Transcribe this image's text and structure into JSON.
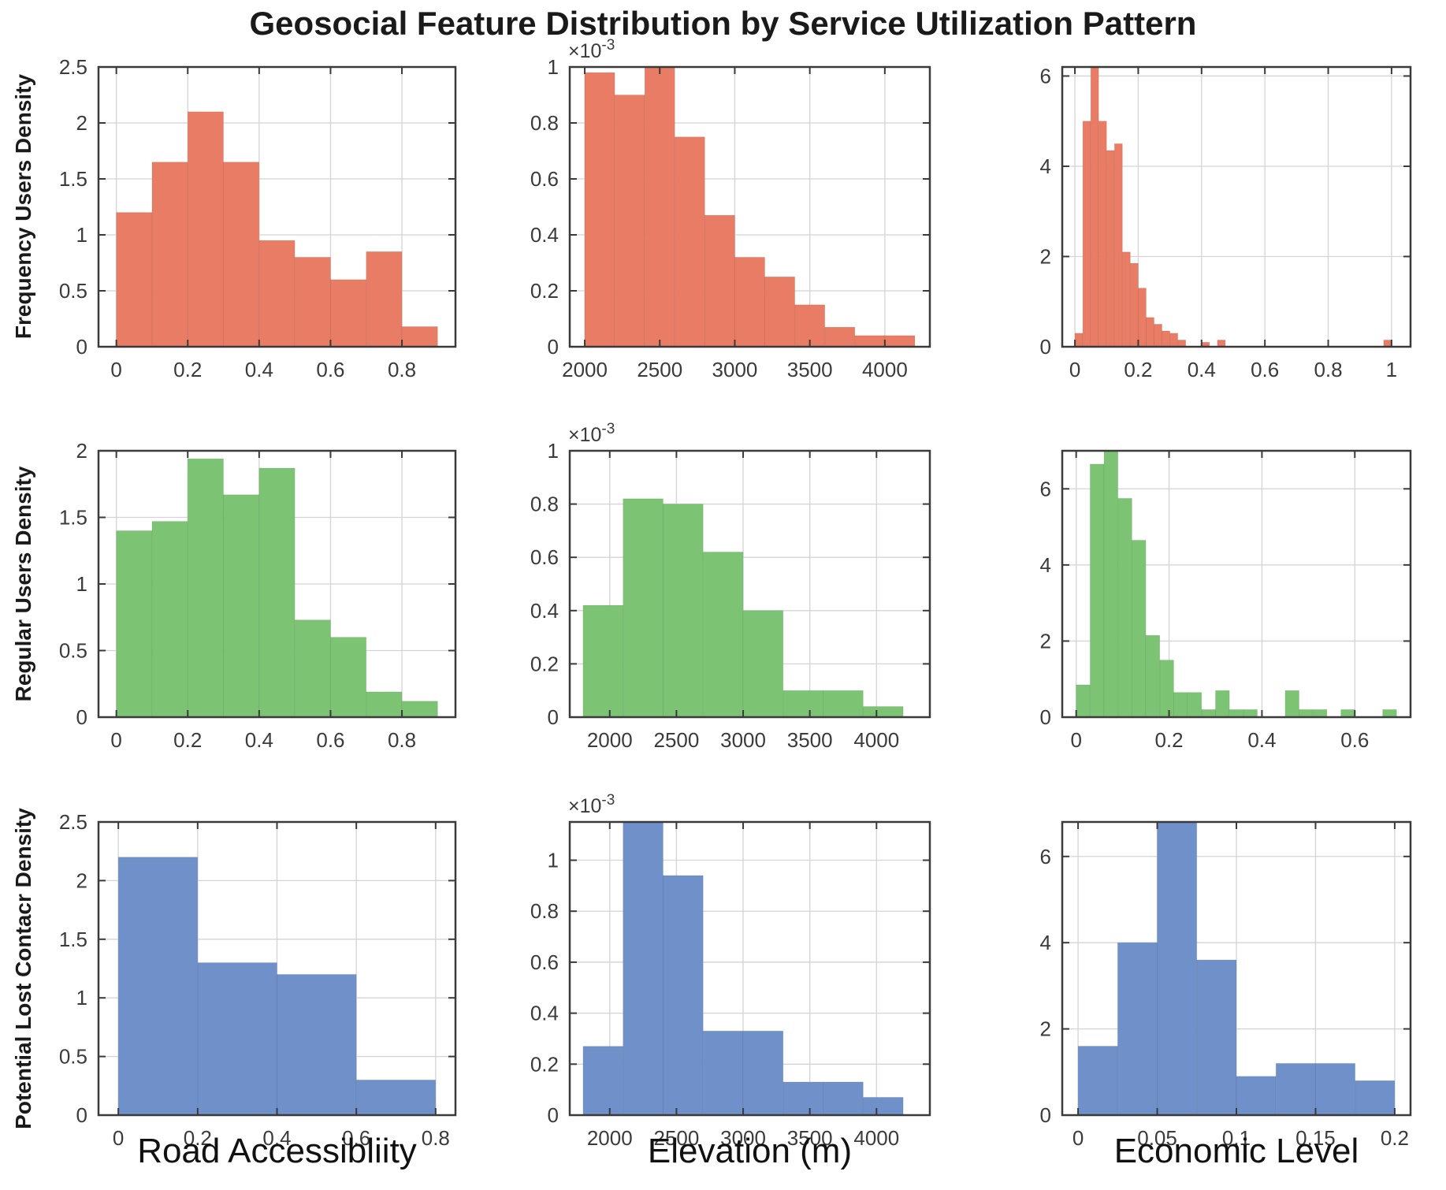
{
  "title": "Geosocial Feature Distribution by Service Utilization Pattern",
  "row_labels": [
    "Frequency Users Density",
    "Regular Users Density",
    "Potential Lost Contacr Density"
  ],
  "col_labels": [
    "Road Accessibliity",
    "Elevation (m)",
    "Economic Level"
  ],
  "colors": {
    "frequency_users": "#e87c64",
    "regular_users": "#7cc474",
    "potential_lost": "#6f90c8",
    "grid": "#d4d4d4",
    "axis": "#3a3a3a",
    "background": "#ffffff"
  },
  "chart_data": [
    {
      "type": "histogram",
      "series_name": "Frequency Users Density",
      "feature": "Road Accessibliity",
      "color": "#e87c64",
      "grid": true,
      "xlim": [
        -0.05,
        0.95
      ],
      "ylim": [
        0,
        2.5
      ],
      "xticks": [
        0,
        0.2,
        0.4,
        0.6,
        0.8
      ],
      "xtick_labels": [
        "0",
        "0.2",
        "0.4",
        "0.6",
        "0.8"
      ],
      "yticks": [
        0,
        0.5,
        1,
        1.5,
        2,
        2.5
      ],
      "ytick_labels": [
        "0",
        "0.5",
        "1",
        "1.5",
        "2",
        "2.5"
      ],
      "bin_start": 0,
      "bin_width": 0.1,
      "values": [
        1.2,
        1.65,
        2.1,
        1.65,
        0.95,
        0.8,
        0.6,
        0.85,
        0.18
      ]
    },
    {
      "type": "histogram",
      "series_name": "Frequency Users Density",
      "feature": "Elevation (m)",
      "color": "#e87c64",
      "grid": true,
      "xlim": [
        1900,
        4300
      ],
      "ylim": [
        0,
        1
      ],
      "xticks": [
        2000,
        2500,
        3000,
        3500,
        4000
      ],
      "xtick_labels": [
        "2000",
        "2500",
        "3000",
        "3500",
        "4000"
      ],
      "yticks": [
        0,
        0.2,
        0.4,
        0.6,
        0.8,
        1
      ],
      "ytick_labels": [
        "0",
        "0.2",
        "0.4",
        "0.6",
        "0.8",
        "1"
      ],
      "y_exponent": {
        "base": "×10",
        "exp": "-3"
      },
      "y_unit": "1e-3",
      "bin_start": 2000,
      "bin_width": 200,
      "values": [
        0.98,
        0.9,
        1.0,
        0.75,
        0.47,
        0.32,
        0.25,
        0.15,
        0.07,
        0.04,
        0.04
      ]
    },
    {
      "type": "histogram",
      "series_name": "Frequency Users Density",
      "feature": "Economic Level",
      "color": "#e87c64",
      "grid": true,
      "xlim": [
        -0.04,
        1.06
      ],
      "ylim": [
        0,
        6.2
      ],
      "xticks": [
        0,
        0.2,
        0.4,
        0.6,
        0.8,
        1
      ],
      "xtick_labels": [
        "0",
        "0.2",
        "0.4",
        "0.6",
        "0.8",
        "1"
      ],
      "yticks": [
        0,
        2,
        4,
        6
      ],
      "ytick_labels": [
        "0",
        "2",
        "4",
        "6"
      ],
      "bin_start": 0,
      "bin_width": 0.025,
      "values": [
        0.3,
        5,
        6.2,
        5,
        4.35,
        4.5,
        2.1,
        1.85,
        1.3,
        0.65,
        0.5,
        0.35,
        0.3,
        0.15,
        0,
        0,
        0.1,
        0,
        0.15,
        0,
        0,
        0,
        0,
        0,
        0,
        0,
        0,
        0,
        0,
        0,
        0,
        0,
        0,
        0,
        0,
        0,
        0,
        0,
        0,
        0.15
      ]
    },
    {
      "type": "histogram",
      "series_name": "Regular Users Density",
      "feature": "Road Accessibliity",
      "color": "#7cc474",
      "grid": true,
      "xlim": [
        -0.05,
        0.95
      ],
      "ylim": [
        0,
        2
      ],
      "xticks": [
        0,
        0.2,
        0.4,
        0.6,
        0.8
      ],
      "xtick_labels": [
        "0",
        "0.2",
        "0.4",
        "0.6",
        "0.8"
      ],
      "yticks": [
        0,
        0.5,
        1,
        1.5,
        2
      ],
      "ytick_labels": [
        "0",
        "0.5",
        "1",
        "1.5",
        "2"
      ],
      "bin_start": 0,
      "bin_width": 0.1,
      "values": [
        1.4,
        1.47,
        1.94,
        1.67,
        1.87,
        0.73,
        0.6,
        0.19,
        0.12
      ]
    },
    {
      "type": "histogram",
      "series_name": "Regular Users Density",
      "feature": "Elevation (m)",
      "color": "#7cc474",
      "grid": true,
      "xlim": [
        1700,
        4400
      ],
      "ylim": [
        0,
        1
      ],
      "xticks": [
        2000,
        2500,
        3000,
        3500,
        4000
      ],
      "xtick_labels": [
        "2000",
        "2500",
        "3000",
        "3500",
        "4000"
      ],
      "yticks": [
        0,
        0.2,
        0.4,
        0.6,
        0.8,
        1
      ],
      "ytick_labels": [
        "0",
        "0.2",
        "0.4",
        "0.6",
        "0.8",
        "1"
      ],
      "y_exponent": {
        "base": "×10",
        "exp": "-3"
      },
      "y_unit": "1e-3",
      "bin_start": 1800,
      "bin_width": 300,
      "values": [
        0.42,
        0.82,
        0.8,
        0.62,
        0.4,
        0.1,
        0.1,
        0.04
      ]
    },
    {
      "type": "histogram",
      "series_name": "Regular Users Density",
      "feature": "Economic Level",
      "color": "#7cc474",
      "grid": true,
      "xlim": [
        -0.03,
        0.72
      ],
      "ylim": [
        0,
        7
      ],
      "xticks": [
        0,
        0.2,
        0.4,
        0.6
      ],
      "xtick_labels": [
        "0",
        "0.2",
        "0.4",
        "0.6"
      ],
      "yticks": [
        0,
        2,
        4,
        6
      ],
      "ytick_labels": [
        "0",
        "2",
        "4",
        "6"
      ],
      "bin_start": 0,
      "bin_width": 0.03,
      "values": [
        0.85,
        6.65,
        7.0,
        5.75,
        4.65,
        2.15,
        1.5,
        0.65,
        0.65,
        0.2,
        0.7,
        0.2,
        0.2,
        0,
        0,
        0.7,
        0.2,
        0.2,
        0,
        0.2,
        0,
        0,
        0.2
      ]
    },
    {
      "type": "histogram",
      "series_name": "Potential Lost Contacr Density",
      "feature": "Road Accessibliity",
      "color": "#6f90c8",
      "grid": true,
      "xlim": [
        -0.05,
        0.85
      ],
      "ylim": [
        0,
        2.5
      ],
      "xticks": [
        0,
        0.2,
        0.4,
        0.6,
        0.8
      ],
      "xtick_labels": [
        "0",
        "0.2",
        "0.4",
        "0.6",
        "0.8"
      ],
      "yticks": [
        0,
        0.5,
        1,
        1.5,
        2,
        2.5
      ],
      "ytick_labels": [
        "0",
        "0.5",
        "1",
        "1.5",
        "2",
        "2.5"
      ],
      "bin_start": 0,
      "bin_width": 0.2,
      "values": [
        2.2,
        1.3,
        1.2,
        0.3
      ]
    },
    {
      "type": "histogram",
      "series_name": "Potential Lost Contacr Density",
      "feature": "Elevation (m)",
      "color": "#6f90c8",
      "grid": true,
      "xlim": [
        1700,
        4400
      ],
      "ylim": [
        0,
        1.15
      ],
      "xticks": [
        2000,
        2500,
        3000,
        3500,
        4000
      ],
      "xtick_labels": [
        "2000",
        "2500",
        "3000",
        "3500",
        "4000"
      ],
      "yticks": [
        0,
        0.2,
        0.4,
        0.6,
        0.8,
        1
      ],
      "ytick_labels": [
        "0",
        "0.2",
        "0.4",
        "0.6",
        "0.8",
        "1"
      ],
      "y_exponent": {
        "base": "×10",
        "exp": "-3"
      },
      "y_unit": "1e-3",
      "bin_start": 1800,
      "bin_width": 300,
      "values": [
        0.27,
        1.15,
        0.94,
        0.33,
        0.33,
        0.13,
        0.13,
        0.07
      ]
    },
    {
      "type": "histogram",
      "series_name": "Potential Lost Contacr Density",
      "feature": "Economic Level",
      "color": "#6f90c8",
      "grid": true,
      "xlim": [
        -0.01,
        0.21
      ],
      "ylim": [
        0,
        6.8
      ],
      "xticks": [
        0,
        0.05,
        0.1,
        0.15,
        0.2
      ],
      "xtick_labels": [
        "0",
        "0.05",
        "0.1",
        "0.15",
        "0.2"
      ],
      "yticks": [
        0,
        2,
        4,
        6
      ],
      "ytick_labels": [
        "0",
        "2",
        "4",
        "6"
      ],
      "bin_start": 0,
      "bin_width": 0.025,
      "values": [
        1.6,
        4.0,
        6.8,
        3.6,
        0.9,
        1.2,
        1.2,
        0.8
      ]
    }
  ]
}
